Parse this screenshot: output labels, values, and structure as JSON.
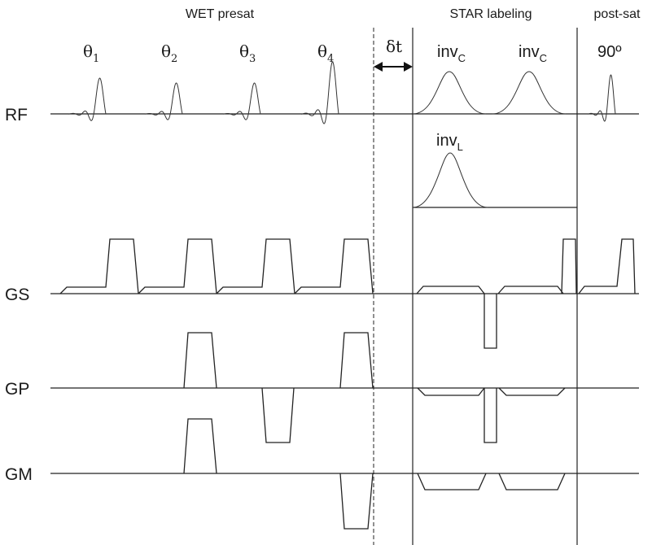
{
  "section_labels": {
    "wet": "WET presat",
    "star": "STAR labeling",
    "post": "post-sat"
  },
  "row_labels": {
    "rf": "RF",
    "gs": "GS",
    "gp": "GP",
    "gm": "GM"
  },
  "pulse_labels": {
    "theta_symbol": "θ",
    "theta_subscripts": [
      "1",
      "2",
      "3",
      "4"
    ],
    "delay": "δt",
    "inv_main": "inv",
    "inv_c_sub": "C",
    "inv_l_sub": "L",
    "post_angle": "90º"
  }
}
